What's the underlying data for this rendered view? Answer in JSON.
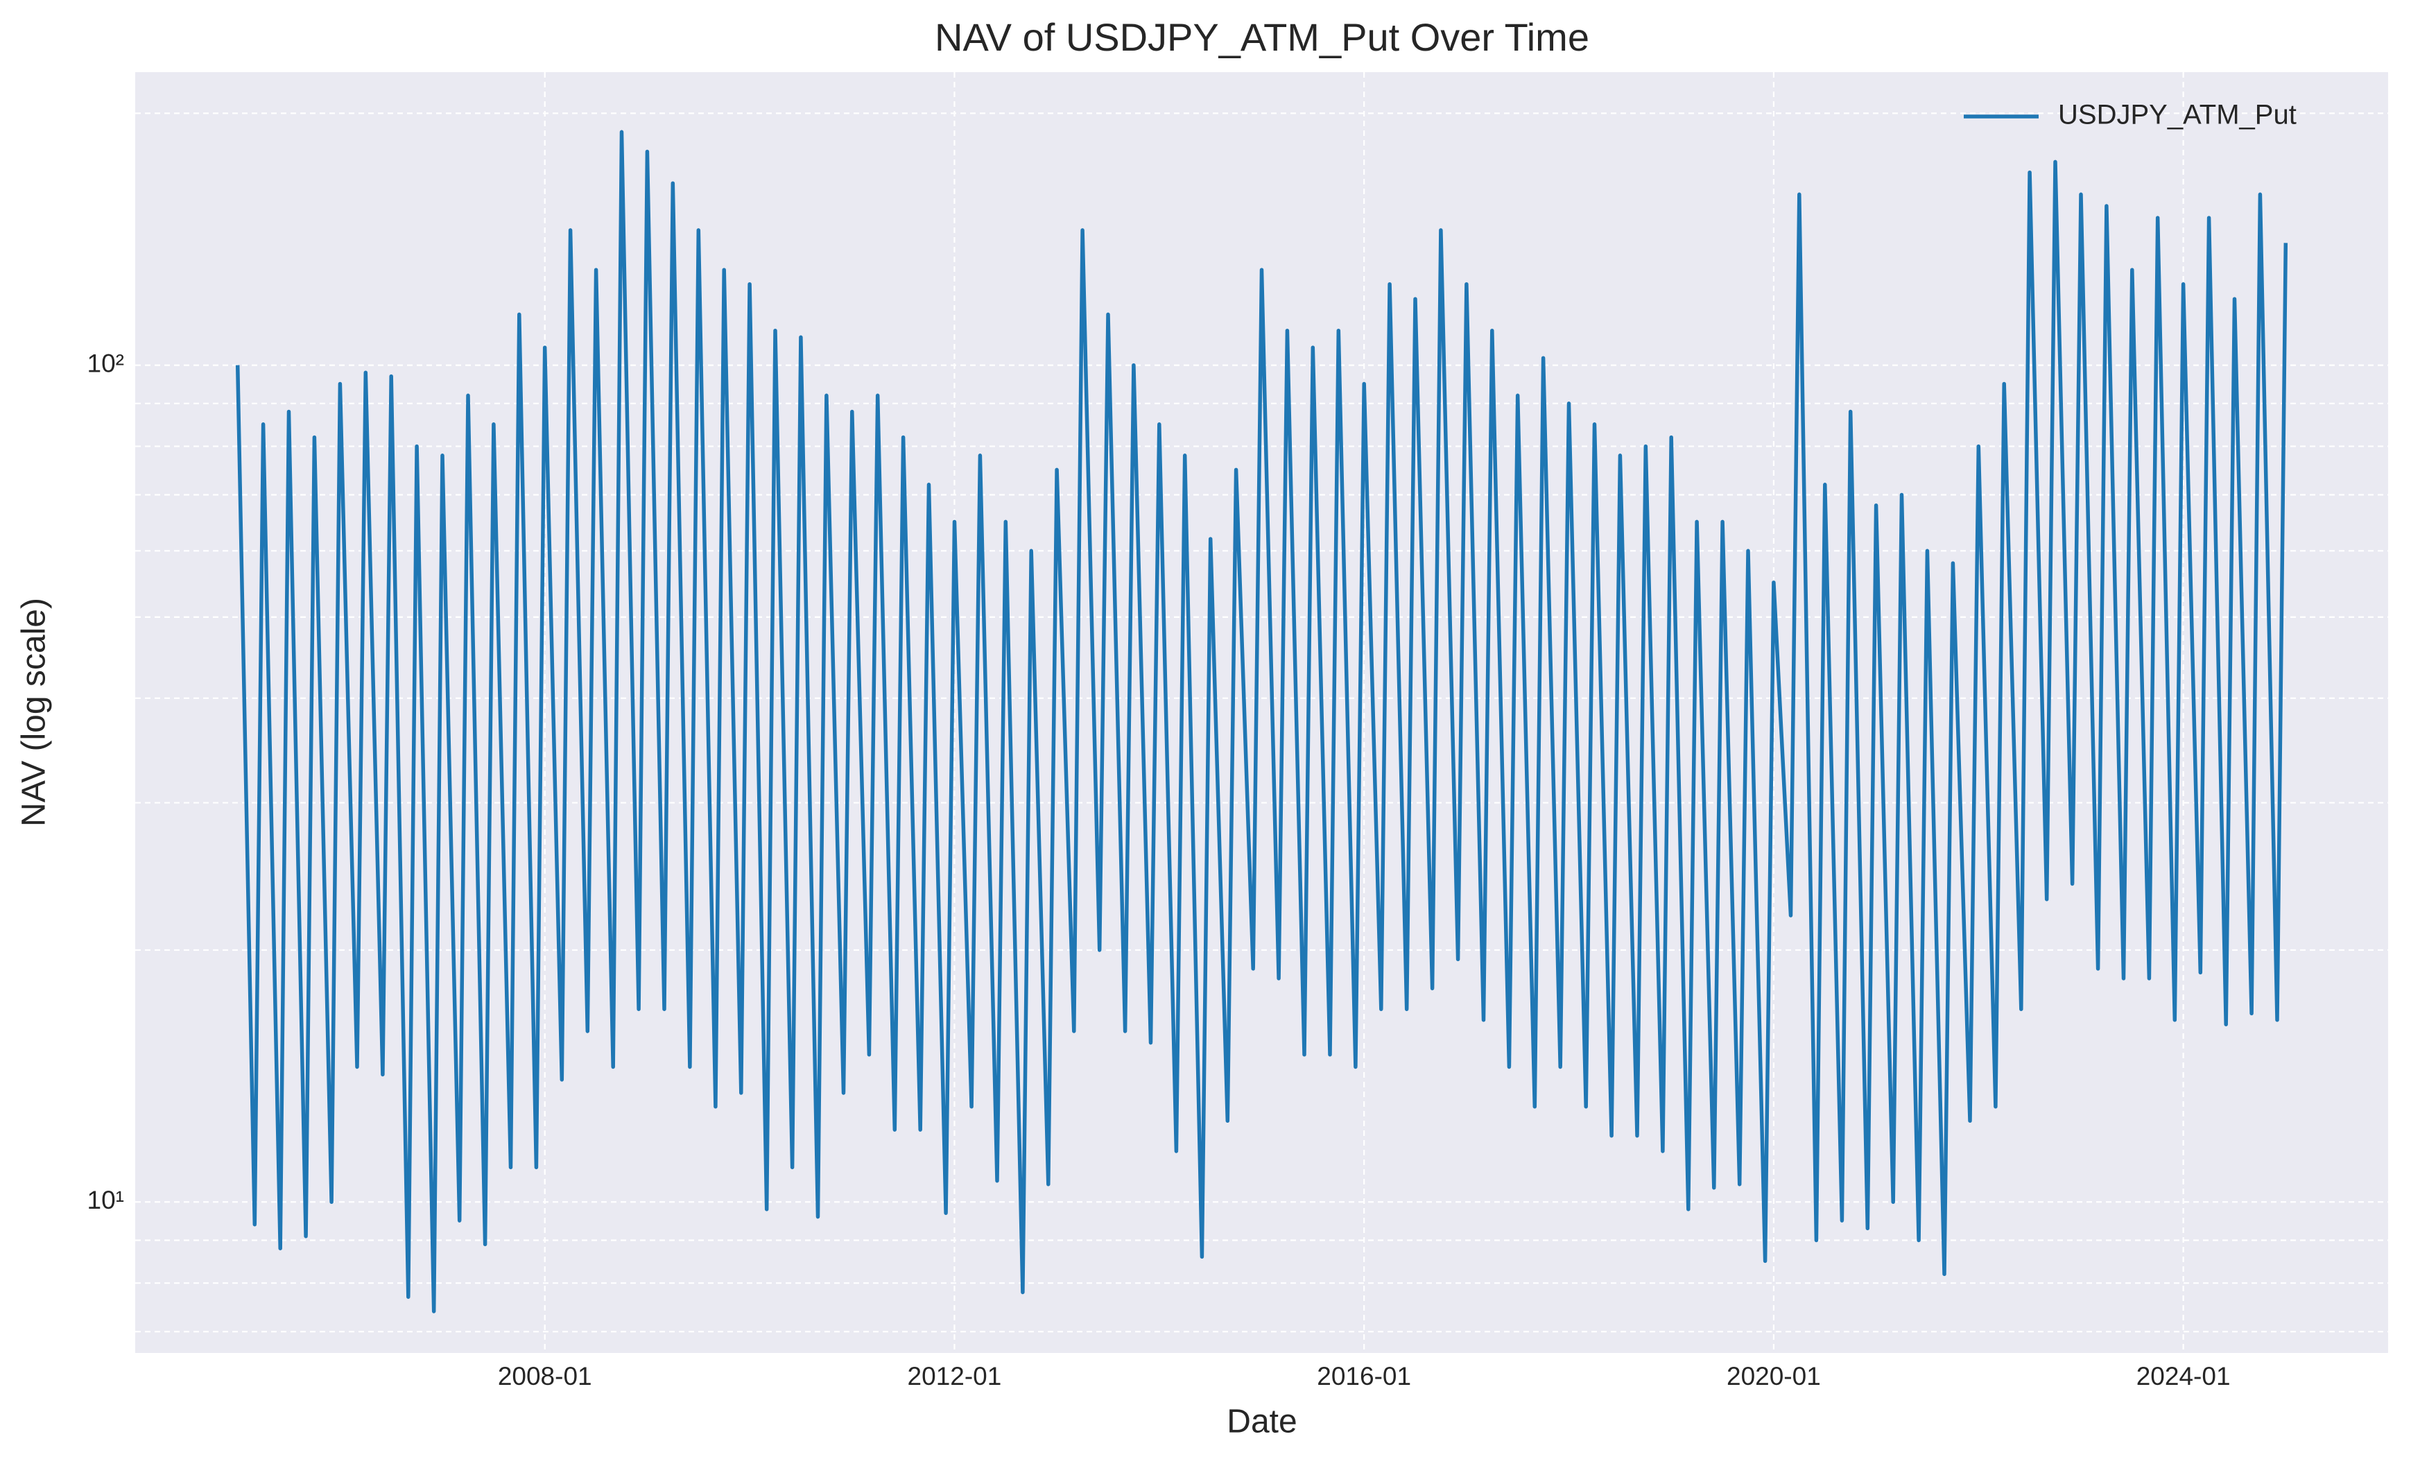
{
  "chart_data": {
    "type": "line",
    "title": "NAV of USDJPY_ATM_Put Over Time",
    "xlabel": "Date",
    "ylabel": "NAV (log scale)",
    "yscale": "log",
    "grid": true,
    "legend": "upper right",
    "xlim": [
      "2004-01",
      "2026-01"
    ],
    "xticks": [
      "2008-01",
      "2012-01",
      "2016-01",
      "2020-01",
      "2024-01"
    ],
    "ylim": [
      6.6,
      224
    ],
    "yticks": [
      {
        "value": 10,
        "label": "10¹"
      },
      {
        "value": 100,
        "label": "10²"
      }
    ],
    "yminorticks": [
      7,
      8,
      9,
      20,
      30,
      40,
      50,
      60,
      70,
      80,
      90,
      200
    ],
    "x": [
      "2005-01",
      "2005-03",
      "2005-04",
      "2005-06",
      "2005-07",
      "2005-09",
      "2005-10",
      "2005-12",
      "2006-01",
      "2006-03",
      "2006-04",
      "2006-06",
      "2006-07",
      "2006-09",
      "2006-10",
      "2006-12",
      "2007-01",
      "2007-03",
      "2007-04",
      "2007-06",
      "2007-07",
      "2007-09",
      "2007-10",
      "2007-12",
      "2008-01",
      "2008-03",
      "2008-04",
      "2008-06",
      "2008-07",
      "2008-09",
      "2008-10",
      "2008-12",
      "2009-01",
      "2009-03",
      "2009-04",
      "2009-06",
      "2009-07",
      "2009-09",
      "2009-10",
      "2009-12",
      "2010-01",
      "2010-03",
      "2010-04",
      "2010-06",
      "2010-07",
      "2010-09",
      "2010-10",
      "2010-12",
      "2011-01",
      "2011-03",
      "2011-04",
      "2011-06",
      "2011-07",
      "2011-09",
      "2011-10",
      "2011-12",
      "2012-01",
      "2012-03",
      "2012-04",
      "2012-06",
      "2012-07",
      "2012-09",
      "2012-10",
      "2012-12",
      "2013-01",
      "2013-03",
      "2013-04",
      "2013-06",
      "2013-07",
      "2013-09",
      "2013-10",
      "2013-12",
      "2014-01",
      "2014-03",
      "2014-04",
      "2014-06",
      "2014-07",
      "2014-09",
      "2014-10",
      "2014-12",
      "2015-01",
      "2015-03",
      "2015-04",
      "2015-06",
      "2015-07",
      "2015-09",
      "2015-10",
      "2015-12",
      "2016-01",
      "2016-03",
      "2016-04",
      "2016-06",
      "2016-07",
      "2016-09",
      "2016-10",
      "2016-12",
      "2017-01",
      "2017-03",
      "2017-04",
      "2017-06",
      "2017-07",
      "2017-09",
      "2017-10",
      "2017-12",
      "2018-01",
      "2018-03",
      "2018-04",
      "2018-06",
      "2018-07",
      "2018-09",
      "2018-10",
      "2018-12",
      "2019-01",
      "2019-03",
      "2019-04",
      "2019-06",
      "2019-07",
      "2019-09",
      "2019-10",
      "2019-12",
      "2020-01",
      "2020-03",
      "2020-04",
      "2020-06",
      "2020-07",
      "2020-09",
      "2020-10",
      "2020-12",
      "2021-01",
      "2021-03",
      "2021-04",
      "2021-06",
      "2021-07",
      "2021-09",
      "2021-10",
      "2021-12",
      "2022-01",
      "2022-03",
      "2022-04",
      "2022-06",
      "2022-07",
      "2022-09",
      "2022-10",
      "2022-12",
      "2023-01",
      "2023-03",
      "2023-04",
      "2023-06",
      "2023-07",
      "2023-09",
      "2023-10",
      "2023-12",
      "2024-01",
      "2024-03",
      "2024-04",
      "2024-06",
      "2024-07",
      "2024-09",
      "2024-10",
      "2024-12",
      "2025-01"
    ],
    "series": [
      {
        "name": "USDJPY_ATM_Put",
        "color": "#1f77b4",
        "values": [
          100,
          9.4,
          85,
          8.8,
          88,
          9.1,
          82,
          10,
          95,
          14.5,
          98,
          14.2,
          97,
          7.7,
          80,
          7.4,
          78,
          9.5,
          92,
          8.9,
          85,
          11,
          115,
          11,
          105,
          14,
          145,
          16,
          130,
          14.5,
          190,
          17,
          180,
          17,
          165,
          14.5,
          145,
          13,
          130,
          13.5,
          125,
          9.8,
          110,
          11,
          108,
          9.6,
          92,
          13.5,
          88,
          15,
          92,
          12.2,
          82,
          12.2,
          72,
          9.7,
          65,
          13,
          78,
          10.6,
          65,
          7.8,
          60,
          10.5,
          75,
          16,
          145,
          20,
          115,
          16,
          100,
          15.5,
          85,
          11.5,
          78,
          8.6,
          62,
          12.5,
          75,
          19,
          130,
          18.5,
          110,
          15,
          105,
          15,
          110,
          14.5,
          95,
          17,
          125,
          17,
          120,
          18,
          145,
          19.5,
          125,
          16.5,
          110,
          14.5,
          92,
          13,
          102,
          14.5,
          90,
          13,
          85,
          12,
          78,
          12,
          80,
          11.5,
          82,
          9.8,
          65,
          10.4,
          65,
          10.5,
          60,
          8.5,
          55,
          22,
          160,
          9,
          72,
          9.5,
          88,
          9.3,
          68,
          10,
          70,
          9,
          60,
          8.2,
          58,
          12.5,
          80,
          13,
          95,
          17,
          170,
          23,
          175,
          24,
          160,
          19,
          155,
          18.5,
          130,
          18.5,
          150,
          16.5,
          125,
          18.8,
          150,
          16.3,
          120,
          16.8,
          160,
          16.5,
          140
        ]
      }
    ]
  }
}
